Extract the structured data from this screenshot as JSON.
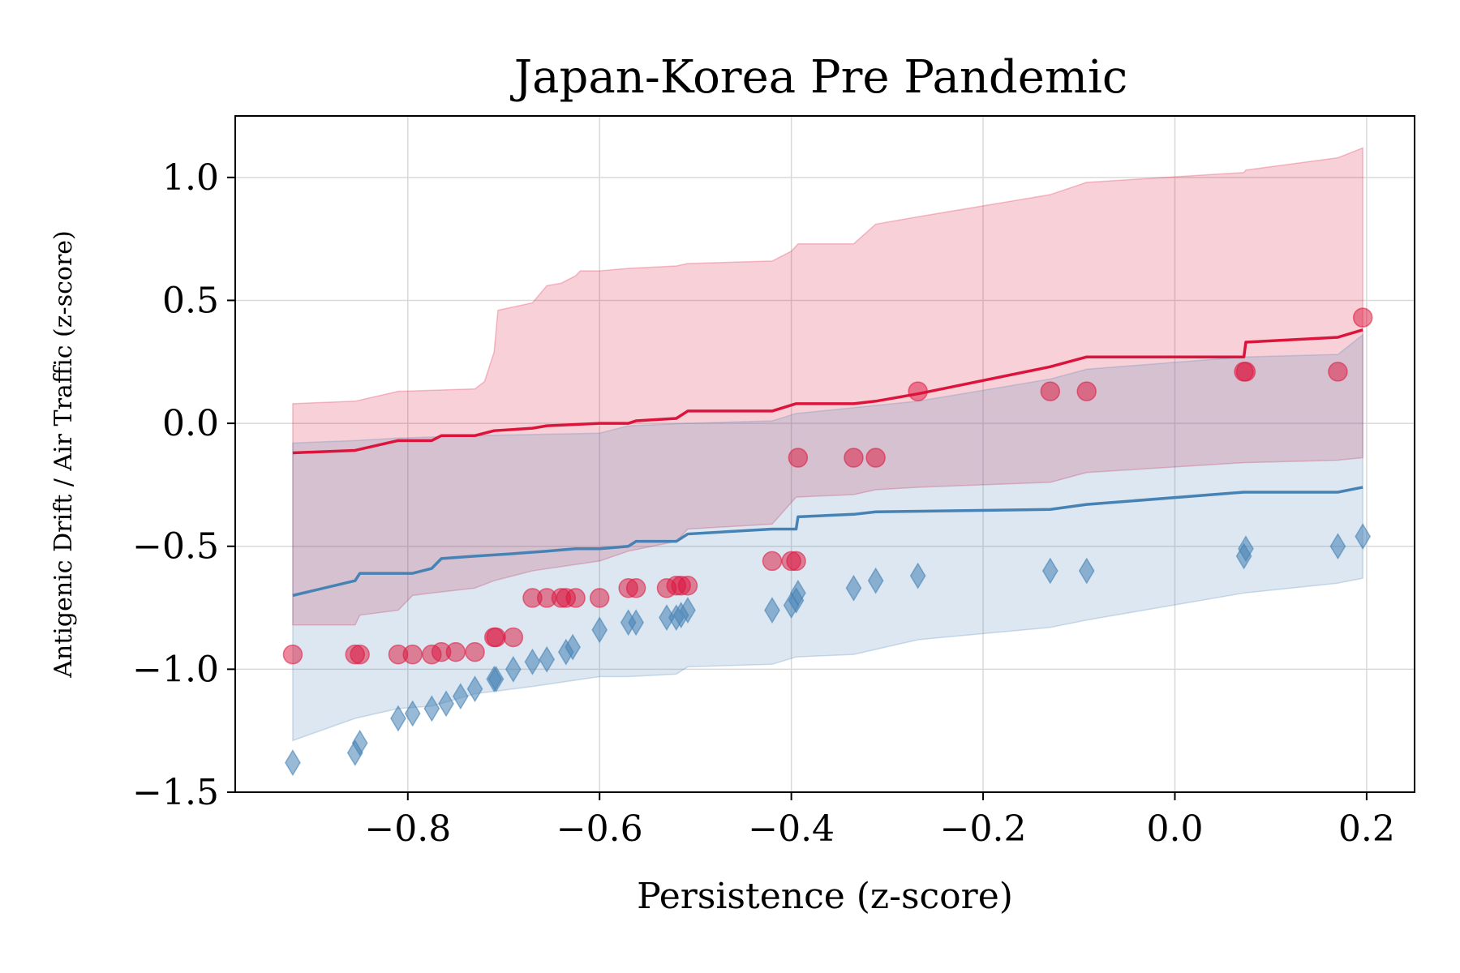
{
  "chart_data": {
    "type": "scatter",
    "title": "Japan-Korea Pre Pandemic",
    "xlabel": "Persistence (z-score)",
    "ylabel": "Antigenic Drift / Air Traffic (z-score)",
    "xlim": [
      -0.98,
      0.25
    ],
    "ylim": [
      -1.5,
      1.25
    ],
    "xticks": [
      -0.8,
      -0.6,
      -0.4,
      -0.2,
      0.0,
      0.2
    ],
    "xtick_labels": [
      "−0.8",
      "−0.6",
      "−0.4",
      "−0.2",
      "0.0",
      "0.2"
    ],
    "yticks": [
      1.0,
      0.5,
      0.0,
      -0.5,
      -1.0,
      -1.5
    ],
    "ytick_labels": [
      "1.0",
      "0.5",
      "0.0",
      "−0.5",
      "−1.0",
      "−1.5"
    ],
    "grid": true,
    "colors": {
      "red": "#dc143c",
      "blue": "#4682b4",
      "red_band": "#dc143c",
      "blue_band": "#4682b4"
    },
    "series": [
      {
        "marker": "circle",
        "color": "#dc143c",
        "points": [
          [
            -0.92,
            -0.94
          ],
          [
            -0.855,
            -0.94
          ],
          [
            -0.85,
            -0.94
          ],
          [
            -0.81,
            -0.94
          ],
          [
            -0.795,
            -0.94
          ],
          [
            -0.775,
            -0.94
          ],
          [
            -0.765,
            -0.93
          ],
          [
            -0.75,
            -0.93
          ],
          [
            -0.73,
            -0.93
          ],
          [
            -0.71,
            -0.87
          ],
          [
            -0.708,
            -0.87
          ],
          [
            -0.69,
            -0.87
          ],
          [
            -0.67,
            -0.71
          ],
          [
            -0.655,
            -0.71
          ],
          [
            -0.64,
            -0.71
          ],
          [
            -0.635,
            -0.71
          ],
          [
            -0.625,
            -0.71
          ],
          [
            -0.6,
            -0.71
          ],
          [
            -0.57,
            -0.67
          ],
          [
            -0.562,
            -0.67
          ],
          [
            -0.53,
            -0.67
          ],
          [
            -0.52,
            -0.66
          ],
          [
            -0.515,
            -0.66
          ],
          [
            -0.508,
            -0.66
          ],
          [
            -0.42,
            -0.56
          ],
          [
            -0.4,
            -0.56
          ],
          [
            -0.395,
            -0.56
          ],
          [
            -0.393,
            -0.14
          ],
          [
            -0.335,
            -0.14
          ],
          [
            -0.312,
            -0.14
          ],
          [
            -0.268,
            0.13
          ],
          [
            -0.13,
            0.13
          ],
          [
            -0.092,
            0.13
          ],
          [
            0.072,
            0.21
          ],
          [
            0.074,
            0.21
          ],
          [
            0.17,
            0.21
          ],
          [
            0.196,
            0.43
          ]
        ],
        "fit": [
          [
            -0.92,
            -0.12
          ],
          [
            -0.855,
            -0.11
          ],
          [
            -0.81,
            -0.07
          ],
          [
            -0.775,
            -0.07
          ],
          [
            -0.765,
            -0.05
          ],
          [
            -0.73,
            -0.05
          ],
          [
            -0.71,
            -0.03
          ],
          [
            -0.67,
            -0.02
          ],
          [
            -0.655,
            -0.01
          ],
          [
            -0.6,
            0.0
          ],
          [
            -0.57,
            0.0
          ],
          [
            -0.562,
            0.01
          ],
          [
            -0.52,
            0.02
          ],
          [
            -0.508,
            0.05
          ],
          [
            -0.42,
            0.05
          ],
          [
            -0.395,
            0.08
          ],
          [
            -0.335,
            0.08
          ],
          [
            -0.312,
            0.09
          ],
          [
            -0.268,
            0.12
          ],
          [
            -0.13,
            0.23
          ],
          [
            -0.092,
            0.27
          ],
          [
            0.072,
            0.27
          ],
          [
            0.074,
            0.33
          ],
          [
            0.17,
            0.35
          ],
          [
            0.196,
            0.38
          ]
        ],
        "band_upper": [
          [
            -0.92,
            0.08
          ],
          [
            -0.855,
            0.09
          ],
          [
            -0.81,
            0.13
          ],
          [
            -0.73,
            0.14
          ],
          [
            -0.72,
            0.17
          ],
          [
            -0.71,
            0.29
          ],
          [
            -0.706,
            0.46
          ],
          [
            -0.67,
            0.49
          ],
          [
            -0.655,
            0.56
          ],
          [
            -0.64,
            0.57
          ],
          [
            -0.625,
            0.6
          ],
          [
            -0.62,
            0.62
          ],
          [
            -0.6,
            0.62
          ],
          [
            -0.57,
            0.63
          ],
          [
            -0.52,
            0.64
          ],
          [
            -0.508,
            0.65
          ],
          [
            -0.42,
            0.66
          ],
          [
            -0.4,
            0.7
          ],
          [
            -0.393,
            0.73
          ],
          [
            -0.335,
            0.73
          ],
          [
            -0.312,
            0.81
          ],
          [
            -0.268,
            0.84
          ],
          [
            -0.13,
            0.93
          ],
          [
            -0.092,
            0.98
          ],
          [
            0.072,
            1.02
          ],
          [
            0.074,
            1.03
          ],
          [
            0.17,
            1.08
          ],
          [
            0.196,
            1.12
          ]
        ],
        "band_lower": [
          [
            -0.92,
            -0.82
          ],
          [
            -0.855,
            -0.82
          ],
          [
            -0.85,
            -0.78
          ],
          [
            -0.81,
            -0.76
          ],
          [
            -0.795,
            -0.7
          ],
          [
            -0.775,
            -0.69
          ],
          [
            -0.73,
            -0.67
          ],
          [
            -0.71,
            -0.64
          ],
          [
            -0.67,
            -0.6
          ],
          [
            -0.6,
            -0.56
          ],
          [
            -0.57,
            -0.52
          ],
          [
            -0.52,
            -0.48
          ],
          [
            -0.508,
            -0.43
          ],
          [
            -0.42,
            -0.41
          ],
          [
            -0.395,
            -0.3
          ],
          [
            -0.335,
            -0.29
          ],
          [
            -0.312,
            -0.27
          ],
          [
            -0.268,
            -0.26
          ],
          [
            -0.13,
            -0.24
          ],
          [
            -0.092,
            -0.2
          ],
          [
            0.072,
            -0.16
          ],
          [
            0.17,
            -0.15
          ],
          [
            0.196,
            -0.14
          ]
        ]
      },
      {
        "marker": "diamond",
        "color": "#4682b4",
        "points": [
          [
            -0.92,
            -1.38
          ],
          [
            -0.855,
            -1.34
          ],
          [
            -0.85,
            -1.3
          ],
          [
            -0.81,
            -1.2
          ],
          [
            -0.795,
            -1.18
          ],
          [
            -0.775,
            -1.16
          ],
          [
            -0.76,
            -1.14
          ],
          [
            -0.745,
            -1.11
          ],
          [
            -0.73,
            -1.08
          ],
          [
            -0.71,
            -1.04
          ],
          [
            -0.708,
            -1.04
          ],
          [
            -0.69,
            -1.0
          ],
          [
            -0.67,
            -0.97
          ],
          [
            -0.655,
            -0.96
          ],
          [
            -0.635,
            -0.93
          ],
          [
            -0.628,
            -0.91
          ],
          [
            -0.6,
            -0.84
          ],
          [
            -0.57,
            -0.81
          ],
          [
            -0.562,
            -0.81
          ],
          [
            -0.53,
            -0.79
          ],
          [
            -0.52,
            -0.79
          ],
          [
            -0.515,
            -0.78
          ],
          [
            -0.508,
            -0.76
          ],
          [
            -0.42,
            -0.76
          ],
          [
            -0.4,
            -0.74
          ],
          [
            -0.395,
            -0.72
          ],
          [
            -0.393,
            -0.69
          ],
          [
            -0.335,
            -0.67
          ],
          [
            -0.312,
            -0.64
          ],
          [
            -0.268,
            -0.62
          ],
          [
            -0.13,
            -0.6
          ],
          [
            -0.092,
            -0.6
          ],
          [
            0.072,
            -0.54
          ],
          [
            0.074,
            -0.51
          ],
          [
            0.17,
            -0.5
          ],
          [
            0.196,
            -0.46
          ]
        ],
        "fit": [
          [
            -0.92,
            -0.7
          ],
          [
            -0.855,
            -0.64
          ],
          [
            -0.85,
            -0.61
          ],
          [
            -0.81,
            -0.61
          ],
          [
            -0.795,
            -0.61
          ],
          [
            -0.775,
            -0.59
          ],
          [
            -0.765,
            -0.55
          ],
          [
            -0.73,
            -0.54
          ],
          [
            -0.69,
            -0.53
          ],
          [
            -0.655,
            -0.52
          ],
          [
            -0.625,
            -0.51
          ],
          [
            -0.6,
            -0.51
          ],
          [
            -0.57,
            -0.5
          ],
          [
            -0.562,
            -0.48
          ],
          [
            -0.52,
            -0.48
          ],
          [
            -0.508,
            -0.45
          ],
          [
            -0.42,
            -0.43
          ],
          [
            -0.395,
            -0.43
          ],
          [
            -0.393,
            -0.38
          ],
          [
            -0.335,
            -0.37
          ],
          [
            -0.312,
            -0.36
          ],
          [
            -0.13,
            -0.35
          ],
          [
            -0.092,
            -0.33
          ],
          [
            0.072,
            -0.28
          ],
          [
            0.17,
            -0.28
          ],
          [
            0.196,
            -0.26
          ]
        ],
        "band_upper": [
          [
            -0.92,
            -0.08
          ],
          [
            -0.855,
            -0.07
          ],
          [
            -0.81,
            -0.06
          ],
          [
            -0.73,
            -0.05
          ],
          [
            -0.6,
            -0.04
          ],
          [
            -0.57,
            -0.01
          ],
          [
            -0.508,
            0.0
          ],
          [
            -0.42,
            0.01
          ],
          [
            -0.395,
            0.04
          ],
          [
            -0.268,
            0.09
          ],
          [
            -0.13,
            0.18
          ],
          [
            -0.092,
            0.22
          ],
          [
            0.072,
            0.27
          ],
          [
            0.17,
            0.28
          ],
          [
            0.196,
            0.36
          ]
        ],
        "band_lower": [
          [
            -0.92,
            -1.29
          ],
          [
            -0.855,
            -1.2
          ],
          [
            -0.81,
            -1.16
          ],
          [
            -0.775,
            -1.15
          ],
          [
            -0.73,
            -1.1
          ],
          [
            -0.67,
            -1.07
          ],
          [
            -0.6,
            -1.03
          ],
          [
            -0.57,
            -1.03
          ],
          [
            -0.52,
            -1.02
          ],
          [
            -0.508,
            -0.99
          ],
          [
            -0.42,
            -0.98
          ],
          [
            -0.395,
            -0.95
          ],
          [
            -0.335,
            -0.94
          ],
          [
            -0.268,
            -0.88
          ],
          [
            -0.13,
            -0.83
          ],
          [
            -0.092,
            -0.8
          ],
          [
            0.072,
            -0.69
          ],
          [
            0.17,
            -0.65
          ],
          [
            0.196,
            -0.63
          ]
        ]
      }
    ]
  }
}
